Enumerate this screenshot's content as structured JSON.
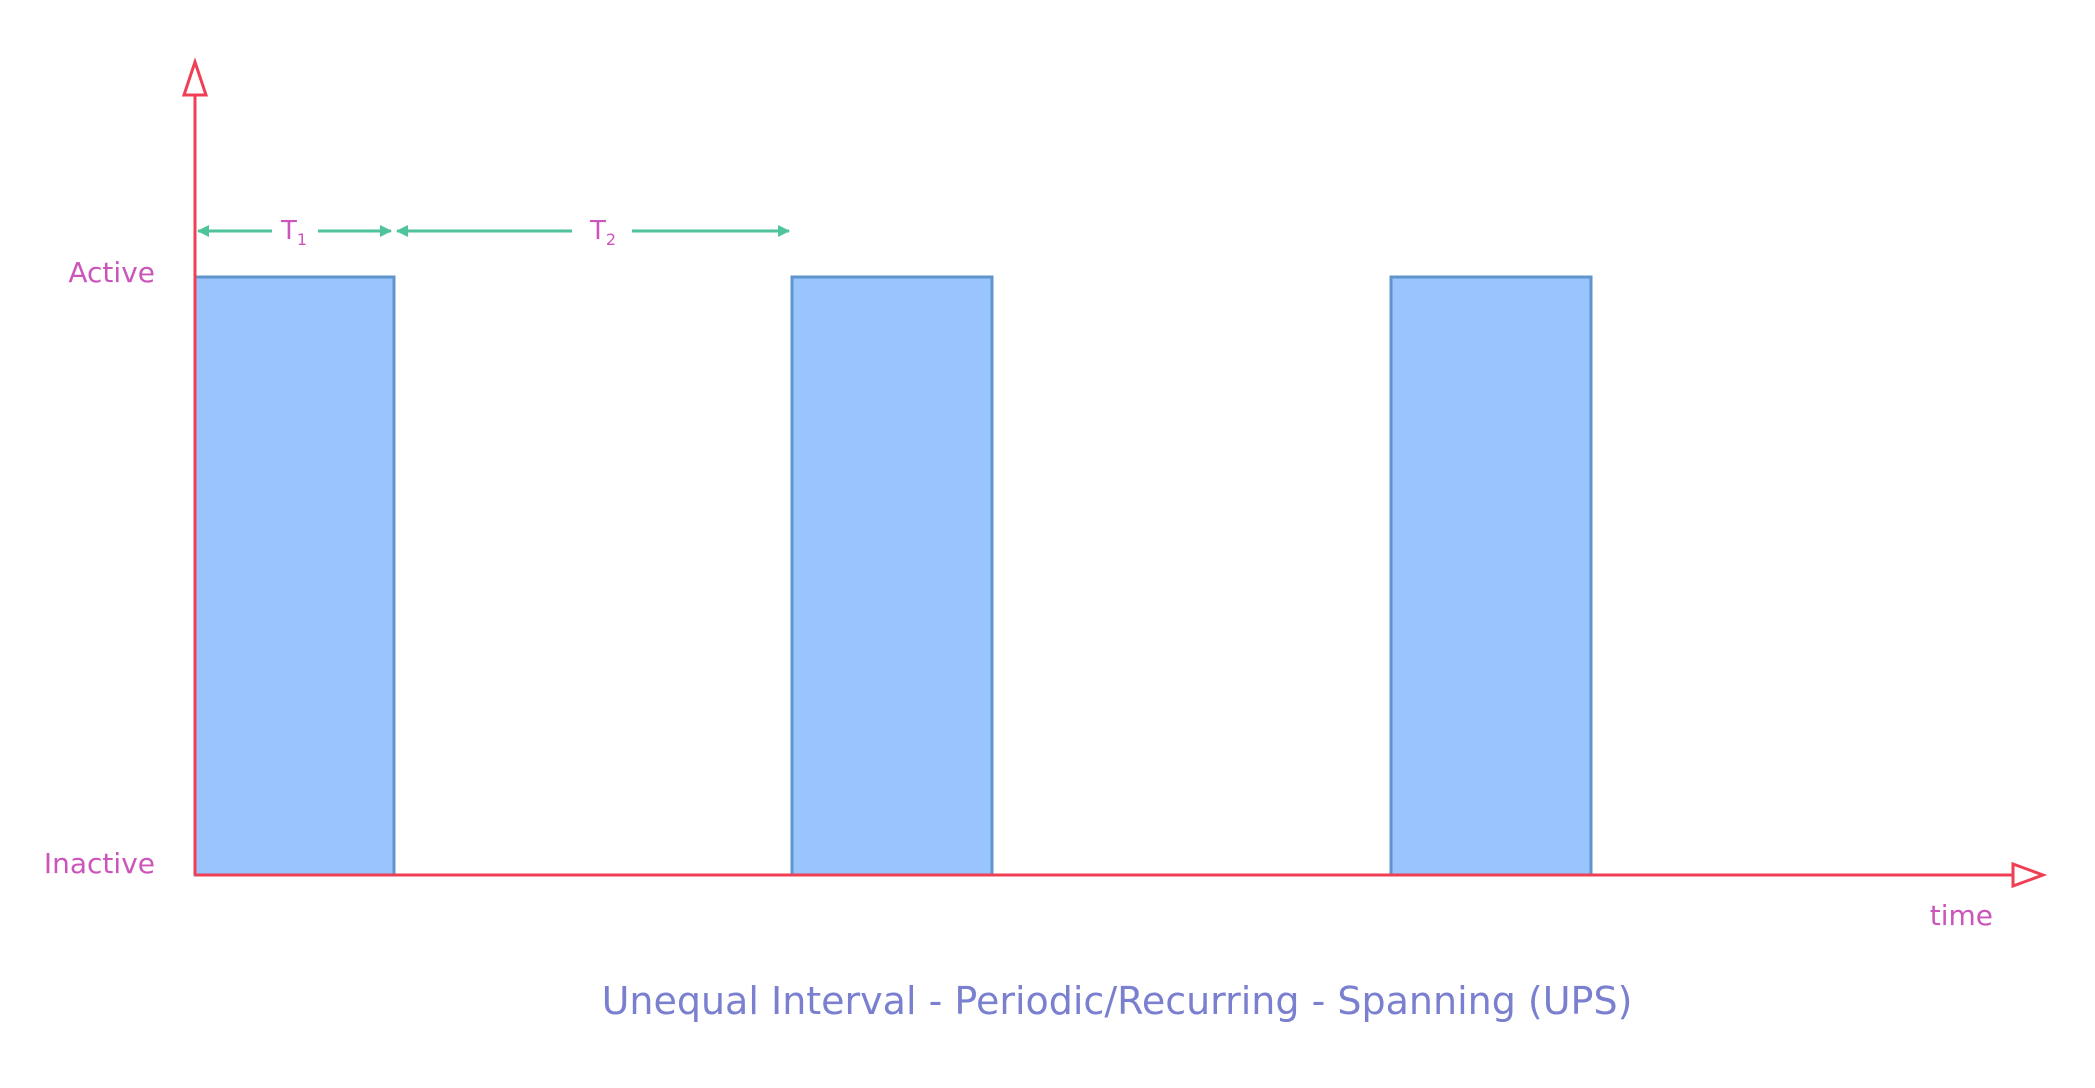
{
  "diagram": {
    "caption": "Unequal Interval - Periodic/Recurring - Spanning (UPS)",
    "y_axis": {
      "high_label": "Active",
      "low_label": "Inactive"
    },
    "x_axis": {
      "label": "time"
    },
    "intervals": {
      "t1": {
        "base": "T",
        "sub": "1"
      },
      "t2": {
        "base": "T",
        "sub": "2"
      }
    },
    "pulse_count": 3,
    "colors": {
      "axis": "#ef3f55",
      "pulse_fill": "#9ac4fd",
      "pulse_stroke": "#5f95cc",
      "label": "#cc55bb",
      "interval_arrow": "#4fc39a",
      "caption": "#7a80cf"
    }
  }
}
